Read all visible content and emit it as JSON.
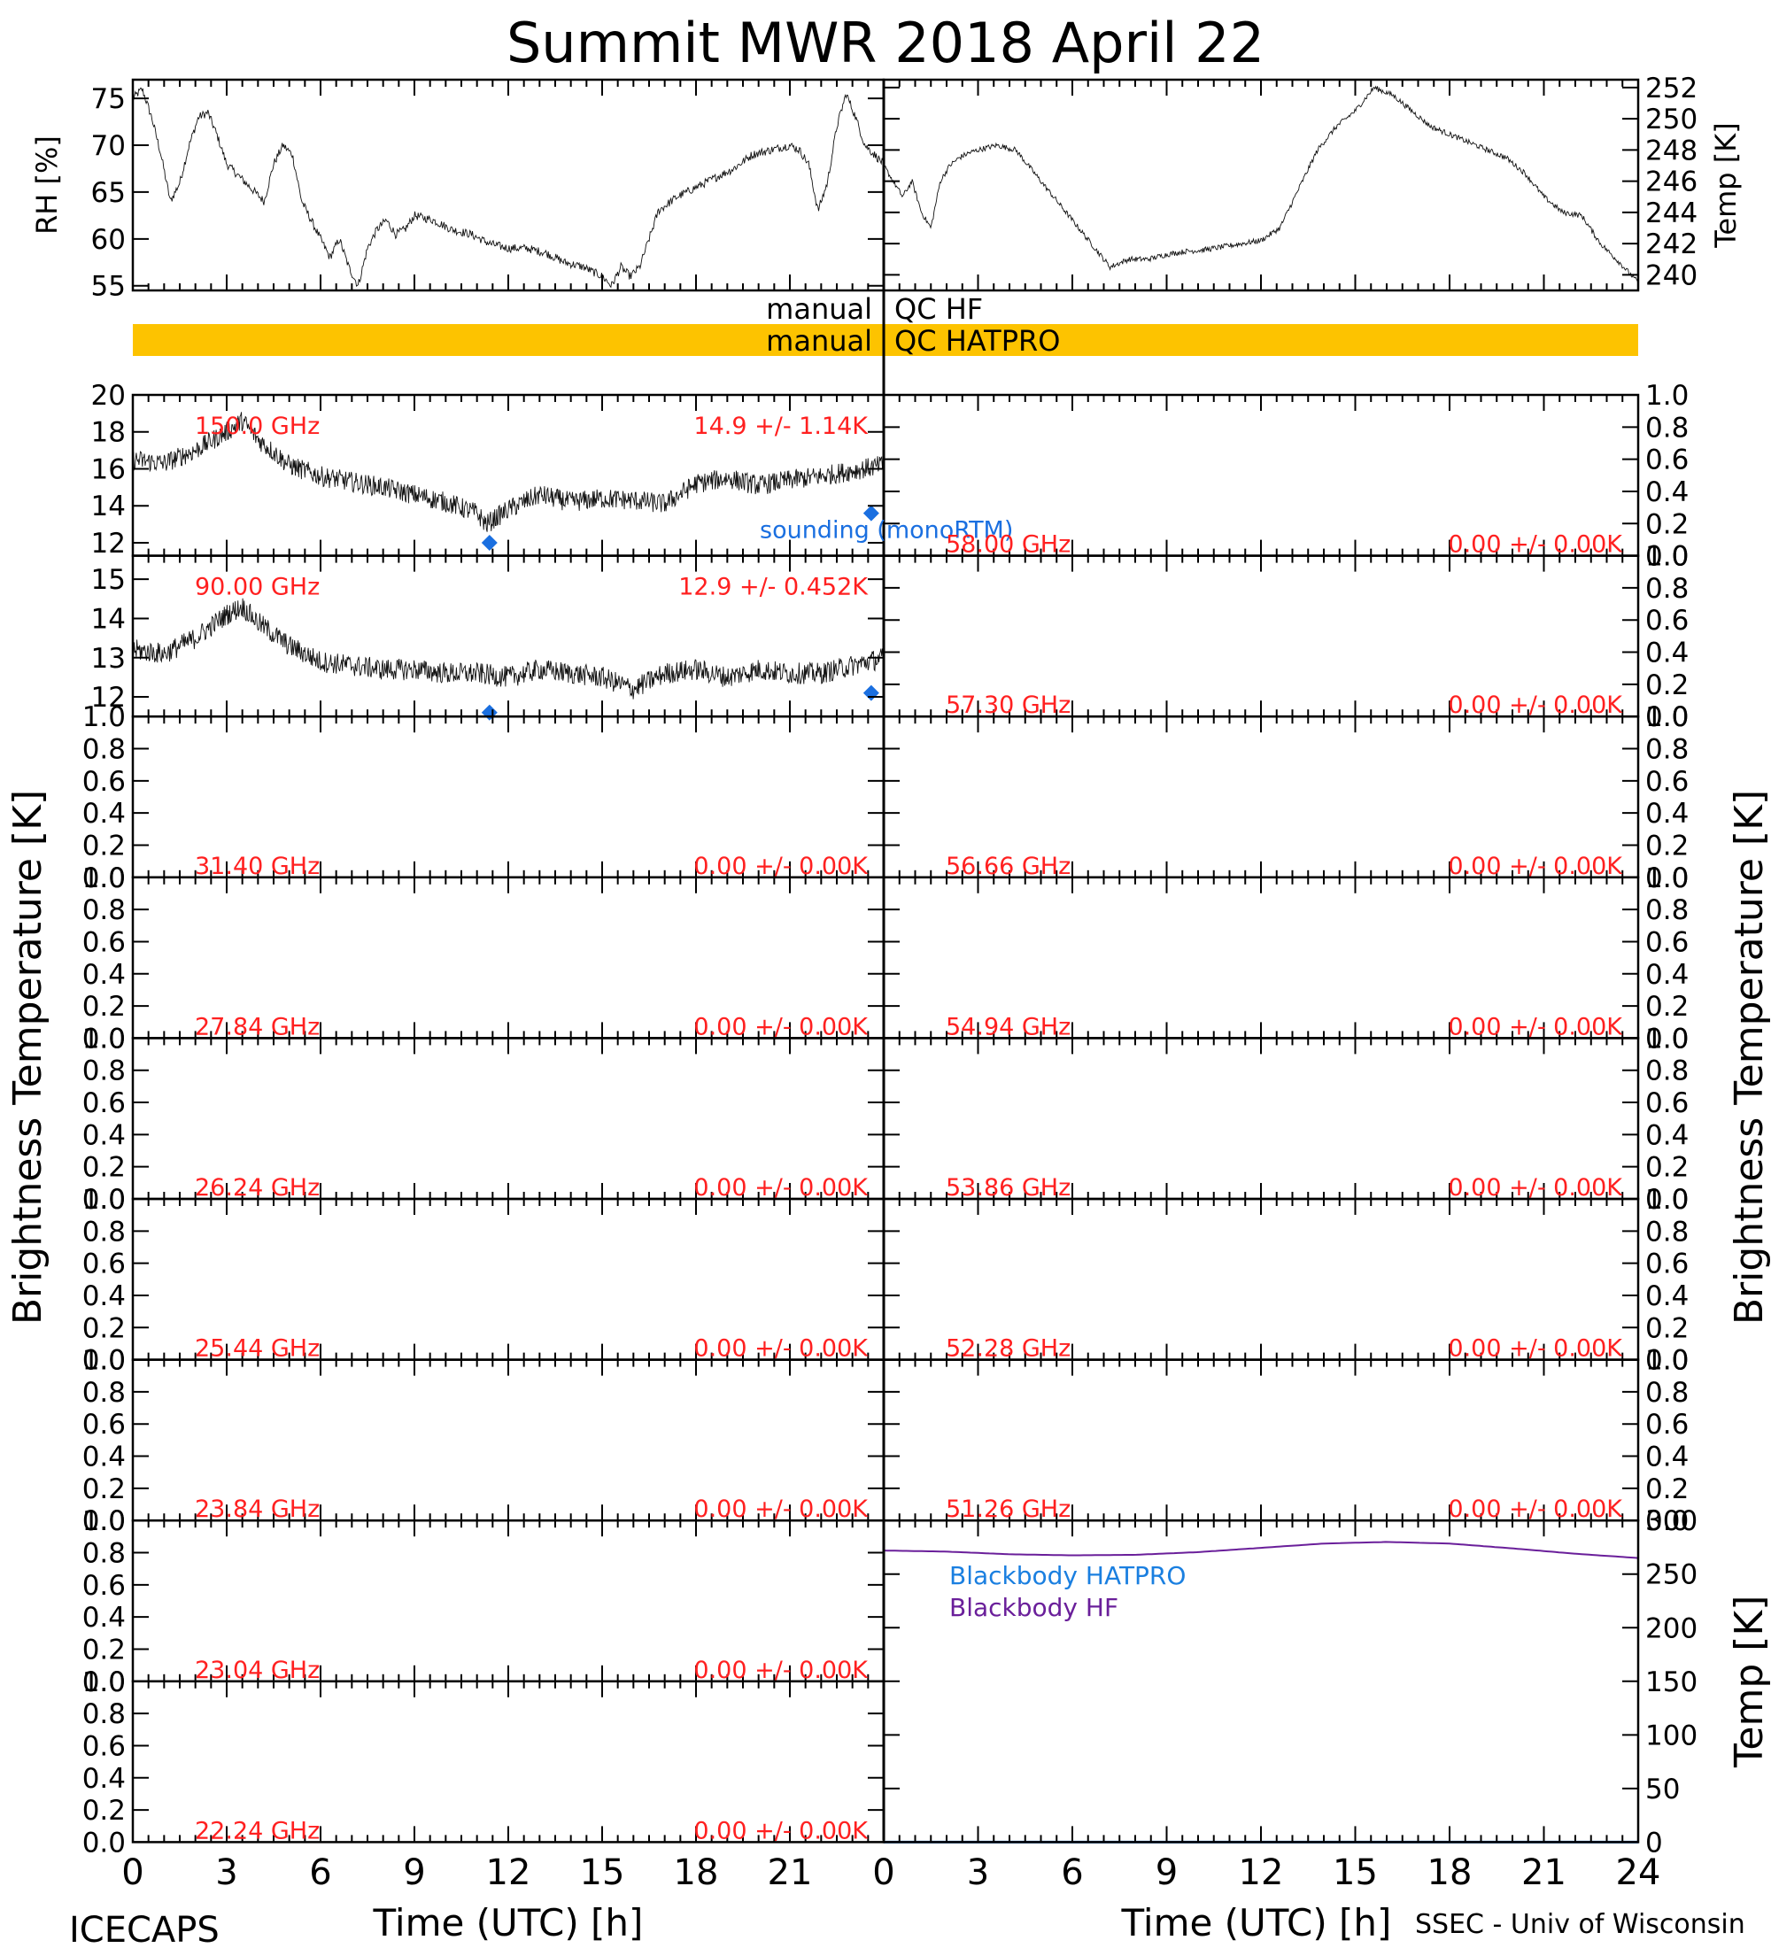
{
  "title": "Summit MWR 2018 April 22",
  "footer": {
    "left": "ICECAPS",
    "right": "SSEC - Univ of Wisconsin"
  },
  "colors": {
    "axis": "#000000",
    "red_label": "#ff2020",
    "blue_sounding": "#1a6fe0",
    "qc_bar": "#fdc300",
    "purple_hf": "#6a1f9a",
    "blue_hatpro": "#1a7fe0"
  },
  "qc": {
    "hf_label": "manual QC HF",
    "hatpro_label": "manual QC HATPRO",
    "hatpro_flagged": true,
    "hf_flagged": false
  },
  "y_axis_labels": {
    "left_main": "Brightness Temperature [K]",
    "right_main": "Brightness Temperature [K]",
    "rh": "RH [%]",
    "temp_met": "Temp [K]",
    "temp_bb": "Temp [K]"
  },
  "x_axis": {
    "label": "Time (UTC) [h]",
    "range": [
      0,
      24
    ],
    "ticks": [
      "0",
      "3",
      "6",
      "9",
      "12",
      "15",
      "18",
      "21",
      "24"
    ]
  },
  "chart_data": [
    {
      "id": "rh",
      "type": "line",
      "ylabel": "RH [%]",
      "ylim": [
        54.5,
        77
      ],
      "yticks": [
        55,
        60,
        65,
        70,
        75
      ],
      "x": [
        0,
        0.3,
        0.6,
        0.9,
        1.2,
        1.5,
        1.8,
        2.1,
        2.4,
        2.7,
        3.0,
        3.3,
        3.6,
        3.9,
        4.2,
        4.5,
        4.8,
        5.1,
        5.4,
        5.7,
        6.0,
        6.3,
        6.6,
        6.9,
        7.2,
        7.5,
        7.8,
        8.1,
        8.4,
        8.7,
        9.0,
        9.6,
        10.2,
        10.8,
        11.4,
        12.0,
        12.6,
        13.2,
        13.8,
        14.4,
        15.0,
        15.3,
        15.6,
        15.9,
        16.2,
        16.5,
        16.8,
        17.4,
        18.0,
        18.6,
        19.2,
        19.8,
        20.4,
        21.0,
        21.3,
        21.6,
        21.9,
        22.2,
        22.5,
        22.8,
        23.1,
        23.4,
        23.7,
        24.0
      ],
      "values": [
        75,
        76,
        73,
        69,
        64,
        66,
        70,
        73,
        73.5,
        71,
        68,
        67,
        66,
        65,
        64,
        68,
        70,
        69,
        64,
        62,
        60,
        58,
        60,
        57,
        55,
        59,
        61,
        62,
        60.5,
        61,
        62.5,
        62,
        61,
        60.5,
        59.5,
        59,
        59,
        58.5,
        57.5,
        57,
        56,
        55,
        57,
        56,
        57,
        60,
        63,
        64.5,
        65.5,
        66.5,
        67.5,
        69,
        69.5,
        70,
        69.5,
        68,
        63,
        66,
        72,
        75.5,
        73,
        70,
        69,
        68
      ]
    },
    {
      "id": "temp_met",
      "type": "line",
      "ylabel": "Temp [K]",
      "ylim": [
        239,
        252.5
      ],
      "yticks": [
        240,
        242,
        244,
        246,
        248,
        250,
        252
      ],
      "x": [
        0,
        0.3,
        0.6,
        0.9,
        1.2,
        1.5,
        1.8,
        2.1,
        2.4,
        2.7,
        3.0,
        3.6,
        4.2,
        4.8,
        5.4,
        6.0,
        6.6,
        7.2,
        7.8,
        8.4,
        9.0,
        9.6,
        10.2,
        10.8,
        11.4,
        12.0,
        12.6,
        13.2,
        13.8,
        14.4,
        15.0,
        15.6,
        16.2,
        16.8,
        17.4,
        18.0,
        18.6,
        19.2,
        19.8,
        20.4,
        21.0,
        21.6,
        22.2,
        22.8,
        23.4,
        24.0
      ],
      "values": [
        247,
        246,
        245,
        246,
        244,
        243,
        246,
        247,
        247.5,
        247.8,
        248,
        248.3,
        248,
        246.5,
        245,
        243.5,
        242,
        240.5,
        241,
        241,
        241.3,
        241.5,
        241.6,
        241.8,
        242,
        242.2,
        243,
        245.5,
        248,
        249.5,
        250.5,
        252,
        251.5,
        250.5,
        249.5,
        249,
        248.5,
        248,
        247.5,
        246.5,
        245,
        244,
        243.8,
        242,
        240.8,
        239.5
      ]
    },
    {
      "id": "tb_150",
      "type": "line",
      "label_left": "150.0 GHz",
      "label_right": "14.9 +/- 1.14K",
      "ylim": [
        11.3,
        20
      ],
      "yticks": [
        12,
        14,
        16,
        18,
        20
      ],
      "x": [
        0,
        1,
        2,
        3,
        3.5,
        4,
        5,
        6,
        7,
        8,
        9,
        10,
        11,
        11.3,
        12,
        13,
        14,
        15,
        16,
        17,
        18,
        19,
        20,
        21,
        22,
        23,
        24
      ],
      "values": [
        16.5,
        16.3,
        17,
        18,
        18.6,
        17.6,
        16.2,
        15.6,
        15.3,
        15.0,
        14.6,
        14.2,
        13.6,
        13.0,
        13.8,
        14.6,
        14.2,
        14.4,
        14.3,
        14.1,
        15.2,
        15.5,
        15.1,
        15.4,
        15.6,
        15.9,
        16.2
      ],
      "noise": 1.1,
      "sounding_label": "sounding (monoRTM)",
      "sounding": [
        {
          "x": 11.4,
          "y": 12.0
        },
        {
          "x": 23.6,
          "y": 13.6
        }
      ]
    },
    {
      "id": "tb_90",
      "type": "line",
      "label_left": "90.00 GHz",
      "label_right": "12.9 +/- 0.452K",
      "ylim": [
        11.5,
        15.6
      ],
      "yticks": [
        12,
        13,
        14,
        15
      ],
      "x": [
        0,
        1,
        2,
        3,
        3.5,
        4,
        5,
        6,
        7,
        8,
        9,
        10,
        11,
        12,
        13,
        14,
        15,
        16,
        17,
        18,
        19,
        20,
        21,
        22,
        23,
        24
      ],
      "values": [
        13.2,
        13.1,
        13.5,
        14.1,
        14.3,
        13.9,
        13.3,
        12.9,
        12.8,
        12.7,
        12.7,
        12.6,
        12.6,
        12.5,
        12.7,
        12.6,
        12.5,
        12.2,
        12.6,
        12.7,
        12.5,
        12.7,
        12.6,
        12.6,
        12.8,
        13.0
      ],
      "noise": 0.55,
      "sounding": [
        {
          "x": 11.4,
          "y": 11.6
        },
        {
          "x": 23.6,
          "y": 12.1
        }
      ]
    },
    {
      "id": "tb_31.40",
      "type": "line",
      "label_left": "31.40 GHz",
      "label_right": "0.00 +/- 0.00K",
      "ylim": [
        0,
        1
      ],
      "x": [],
      "values": []
    },
    {
      "id": "tb_27.84",
      "type": "line",
      "label_left": "27.84 GHz",
      "label_right": "0.00 +/- 0.00K",
      "ylim": [
        0,
        1
      ],
      "x": [],
      "values": []
    },
    {
      "id": "tb_26.24",
      "type": "line",
      "label_left": "26.24 GHz",
      "label_right": "0.00 +/- 0.00K",
      "ylim": [
        0,
        1
      ],
      "x": [],
      "values": []
    },
    {
      "id": "tb_25.44",
      "type": "line",
      "label_left": "25.44 GHz",
      "label_right": "0.00 +/- 0.00K",
      "ylim": [
        0,
        1
      ],
      "x": [],
      "values": []
    },
    {
      "id": "tb_23.84",
      "type": "line",
      "label_left": "23.84 GHz",
      "label_right": "0.00 +/- 0.00K",
      "ylim": [
        0,
        1
      ],
      "x": [],
      "values": []
    },
    {
      "id": "tb_23.04",
      "type": "line",
      "label_left": "23.04 GHz",
      "label_right": "0.00 +/- 0.00K",
      "ylim": [
        0,
        1
      ],
      "x": [],
      "values": []
    },
    {
      "id": "tb_22.24",
      "type": "line",
      "label_left": "22.24 GHz",
      "label_right": "0.00 +/- 0.00K",
      "ylim": [
        0,
        1
      ],
      "x": [],
      "values": []
    },
    {
      "id": "tb_58.00",
      "type": "line",
      "label_left": "58.00 GHz",
      "label_right": "0.00 +/- 0.00K",
      "ylim": [
        0,
        1
      ],
      "x": [],
      "values": []
    },
    {
      "id": "tb_57.30",
      "type": "line",
      "label_left": "57.30 GHz",
      "label_right": "0.00 +/- 0.00K",
      "ylim": [
        0,
        1
      ],
      "x": [],
      "values": []
    },
    {
      "id": "tb_56.66",
      "type": "line",
      "label_left": "56.66 GHz",
      "label_right": "0.00 +/- 0.00K",
      "ylim": [
        0,
        1
      ],
      "x": [],
      "values": []
    },
    {
      "id": "tb_54.94",
      "type": "line",
      "label_left": "54.94 GHz",
      "label_right": "0.00 +/- 0.00K",
      "ylim": [
        0,
        1
      ],
      "x": [],
      "values": []
    },
    {
      "id": "tb_53.86",
      "type": "line",
      "label_left": "53.86 GHz",
      "label_right": "0.00 +/- 0.00K",
      "ylim": [
        0,
        1
      ],
      "x": [],
      "values": []
    },
    {
      "id": "tb_52.28",
      "type": "line",
      "label_left": "52.28 GHz",
      "label_right": "0.00 +/- 0.00K",
      "ylim": [
        0,
        1
      ],
      "x": [],
      "values": []
    },
    {
      "id": "tb_51.26",
      "type": "line",
      "label_left": "51.26 GHz",
      "label_right": "0.00 +/- 0.00K",
      "ylim": [
        0,
        1
      ],
      "x": [],
      "values": []
    },
    {
      "id": "blackbody",
      "type": "line",
      "ylim": [
        0,
        300
      ],
      "yticks": [
        0,
        50,
        100,
        150,
        200,
        250,
        300
      ],
      "series": [
        {
          "name": "Blackbody HATPRO",
          "x": [
            0,
            24
          ],
          "values": [
            0,
            0
          ]
        },
        {
          "name": "Blackbody HF",
          "x": [
            0,
            2,
            4,
            6,
            8,
            10,
            12,
            14,
            16,
            18,
            20,
            22,
            24
          ],
          "values": [
            272,
            271,
            268.5,
            267.5,
            268,
            270.5,
            274.5,
            278.5,
            280,
            278.5,
            274,
            269,
            265
          ]
        }
      ]
    }
  ],
  "tb_ticks": [
    "0.0",
    "0.2",
    "0.4",
    "0.6",
    "0.8",
    "1.0"
  ]
}
